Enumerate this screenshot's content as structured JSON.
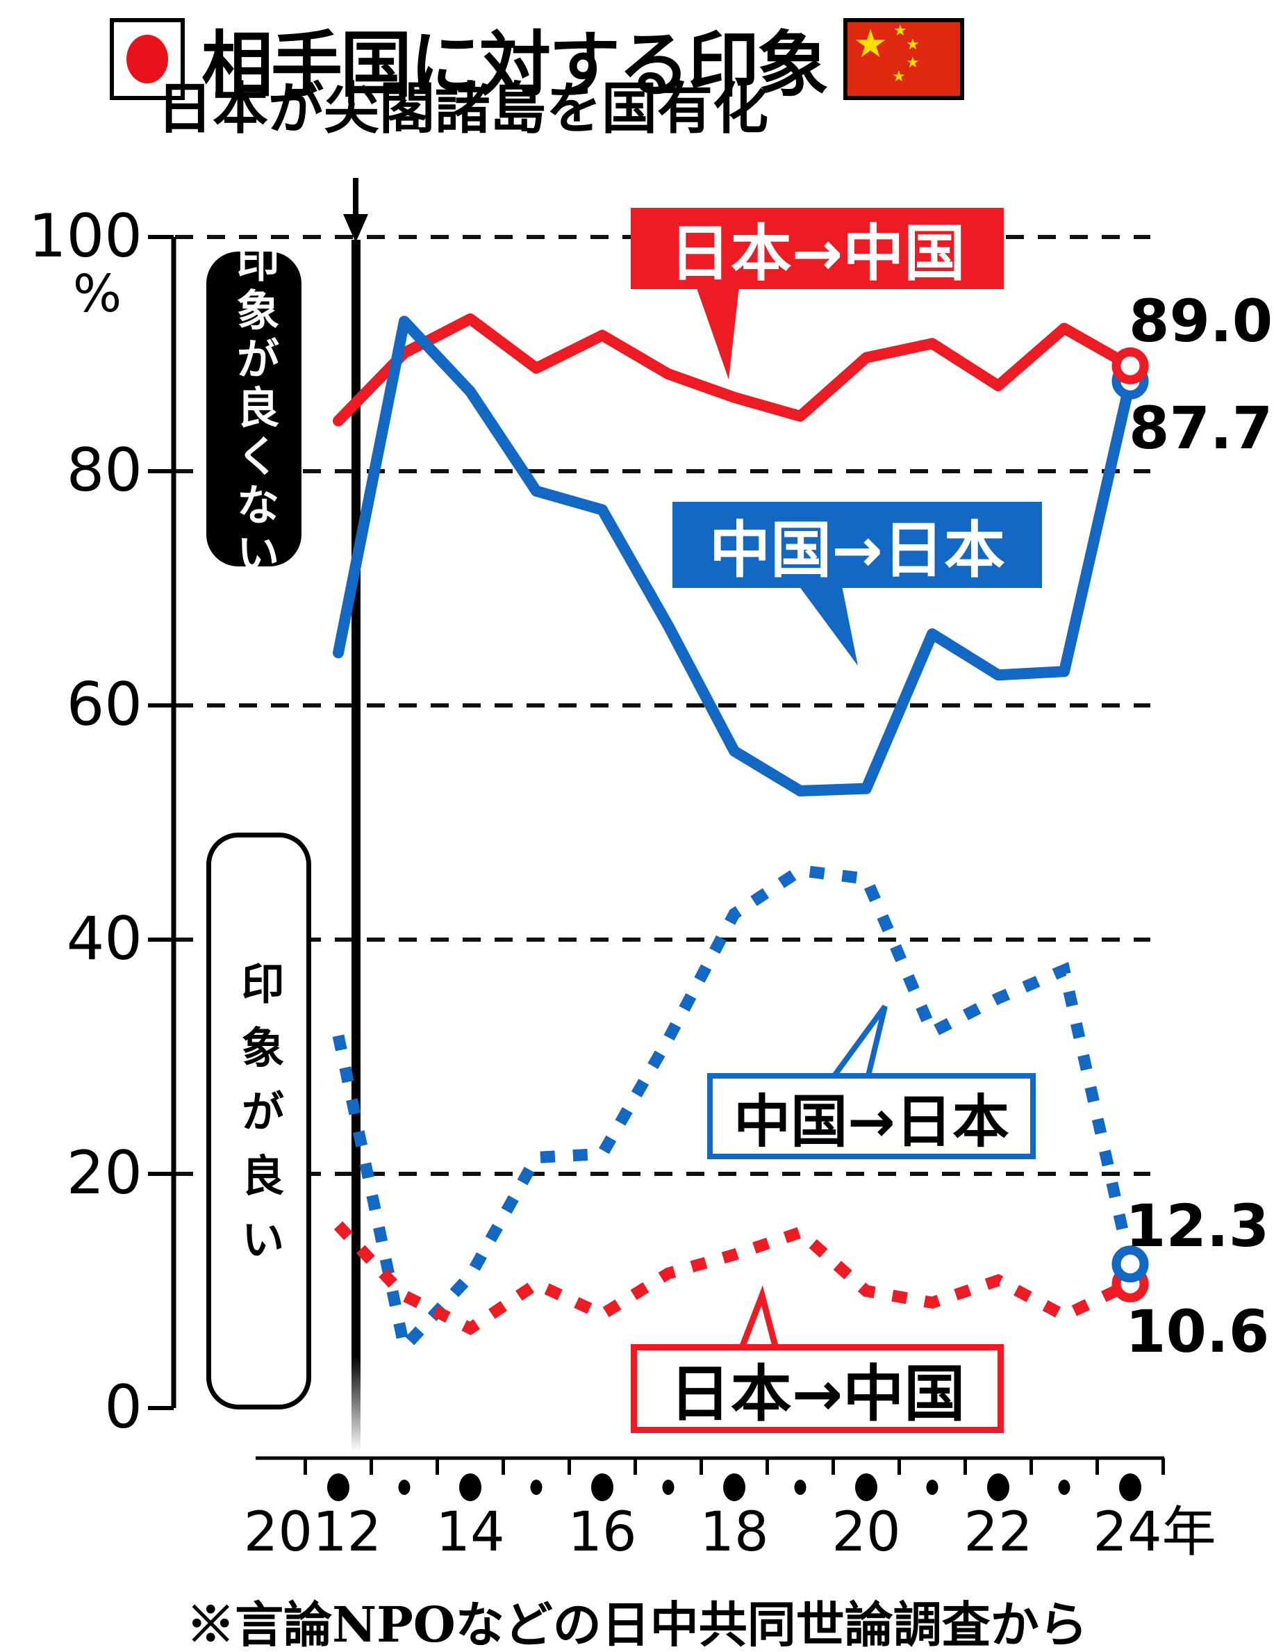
{
  "title": {
    "text": "相手国に対する印象"
  },
  "flags": {
    "left": "japan-flag",
    "right": "china-flag"
  },
  "annotation": {
    "event": "日本が尖閣諸島を国有化"
  },
  "footnote": "※言論NPOなどの日中共同世論調査から",
  "colors": {
    "red": "#ed1c24",
    "blue": "#1268c3",
    "black": "#000000"
  },
  "side_labels": {
    "bad": "印象が良くない",
    "good": "印象が良い"
  },
  "callouts": {
    "red_top": "日本→中国",
    "blue_top": "中国→日本",
    "blue_bottom": "中国→日本",
    "red_bottom": "日本→中国"
  },
  "end_labels": {
    "japan_to_china_bad": "89.0",
    "china_to_japan_bad": "87.7",
    "china_to_japan_good": "12.3",
    "japan_to_china_good": "10.6"
  },
  "axis": {
    "unit": "%",
    "y_ticks": [
      100,
      80,
      60,
      40,
      20,
      0
    ],
    "x_tick_labels": [
      "2012",
      "14",
      "16",
      "18",
      "20",
      "22",
      "24年"
    ]
  },
  "chart_data": {
    "type": "line",
    "title": "相手国に対する印象",
    "xlabel": "年",
    "ylabel": "%",
    "ylim": [
      0,
      100
    ],
    "grid": "dashed horizontal lines at 20,40,60,80,100",
    "x": [
      2012,
      2013,
      2014,
      2015,
      2016,
      2017,
      2018,
      2019,
      2020,
      2021,
      2022,
      2023,
      2024
    ],
    "series": [
      {
        "name": "日本→中国 印象が良くない",
        "style": "solid",
        "color": "#ed1c24",
        "values": [
          84.3,
          90.1,
          93.0,
          88.8,
          91.6,
          88.3,
          86.3,
          84.7,
          89.7,
          90.9,
          87.3,
          92.2,
          89.0
        ]
      },
      {
        "name": "中国→日本 印象が良くない",
        "style": "solid",
        "color": "#1268c3",
        "values": [
          64.5,
          92.8,
          86.8,
          78.3,
          76.7,
          66.8,
          56.1,
          52.7,
          52.9,
          66.1,
          62.6,
          62.9,
          87.7
        ]
      },
      {
        "name": "中国→日本 印象が良い",
        "style": "dotted",
        "color": "#1268c3",
        "values": [
          31.8,
          5.2,
          11.3,
          21.4,
          21.7,
          31.5,
          42.2,
          45.9,
          45.2,
          32.1,
          35.0,
          37.4,
          12.3
        ]
      },
      {
        "name": "日本→中国 印象が良い",
        "style": "dotted",
        "color": "#ed1c24",
        "values": [
          15.6,
          9.6,
          6.8,
          10.6,
          8.0,
          11.5,
          13.1,
          15.0,
          10.0,
          9.0,
          10.9,
          7.9,
          10.6
        ]
      }
    ],
    "annotation_line": {
      "label": "日本が尖閣諸島を国有化",
      "x": 2012.3
    },
    "legend_position": "labels attached to lines"
  }
}
